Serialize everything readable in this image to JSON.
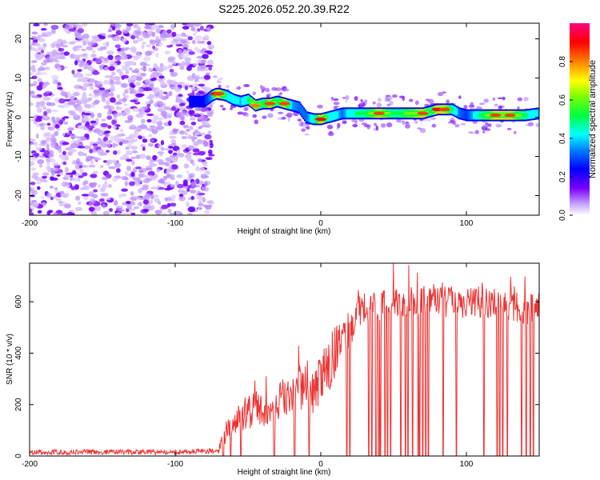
{
  "chart_data": [
    {
      "type": "heatmap",
      "title": "S225.2026.052.20.39.R22",
      "xlabel": "Height of straight line (km)",
      "ylabel": "Frequency (Hz)",
      "xlim": [
        -200,
        150
      ],
      "ylim": [
        -25,
        24
      ],
      "xticks": [
        -200,
        -100,
        0,
        100
      ],
      "yticks": [
        -20,
        -10,
        0,
        10,
        20
      ],
      "colorbar": {
        "label": "Normalized spectral amplitude",
        "range": [
          0,
          1
        ],
        "ticks": [
          "0.0",
          "0.2",
          "0.4",
          "0.6",
          "0.8"
        ],
        "tick_values": [
          0.0,
          0.2,
          0.4,
          0.6,
          0.8
        ]
      },
      "noise_region_x": [
        -200,
        -75
      ],
      "ridge": {
        "x": [
          -90,
          -85,
          -80,
          -75,
          -72,
          -70,
          -65,
          -60,
          -55,
          -50,
          -45,
          -40,
          -35,
          -30,
          -25,
          -20,
          -15,
          -10,
          -5,
          0,
          5,
          10,
          15,
          20,
          30,
          40,
          50,
          60,
          70,
          75,
          80,
          85,
          90,
          95,
          100,
          110,
          120,
          130,
          140,
          150
        ],
        "freq": [
          4.0,
          4.0,
          4.0,
          5.5,
          6.0,
          6.0,
          5.5,
          4.5,
          4.0,
          4.5,
          3.0,
          3.5,
          3.5,
          4.0,
          3.5,
          3.0,
          2.5,
          0.0,
          -0.5,
          -0.5,
          0.0,
          0.5,
          1.0,
          1.0,
          1.0,
          1.0,
          1.0,
          1.0,
          1.0,
          1.5,
          2.0,
          2.0,
          2.0,
          1.0,
          0.5,
          0.5,
          0.5,
          0.5,
          0.5,
          1.0
        ],
        "amplitude": [
          0.25,
          0.3,
          0.3,
          0.45,
          0.9,
          0.85,
          0.55,
          0.5,
          0.45,
          0.6,
          0.8,
          0.6,
          0.85,
          0.6,
          0.85,
          0.45,
          0.4,
          0.4,
          0.55,
          0.9,
          0.55,
          0.5,
          0.4,
          0.55,
          0.6,
          0.85,
          0.6,
          0.7,
          0.85,
          0.6,
          0.9,
          0.85,
          0.6,
          0.4,
          0.35,
          0.6,
          0.85,
          0.85,
          0.6,
          0.45
        ]
      }
    },
    {
      "type": "line",
      "xlabel": "Height of straight line (km)",
      "ylabel": "SNR (10 * v/v)",
      "xlim": [
        -200,
        150
      ],
      "ylim": [
        0,
        750
      ],
      "xticks": [
        -200,
        -100,
        0,
        100
      ],
      "yticks": [
        0,
        200,
        400,
        600
      ],
      "series": [
        {
          "name": "SNR",
          "color": "#ee3333",
          "envelope": {
            "x": [
              -200,
              -150,
              -100,
              -75,
              -70,
              -65,
              -60,
              -55,
              -50,
              -45,
              -40,
              -35,
              -30,
              -25,
              -20,
              -15,
              -10,
              -5,
              0,
              5,
              10,
              15,
              20,
              25,
              30,
              40,
              50,
              60,
              70,
              80,
              90,
              100,
              110,
              120,
              130,
              140,
              150
            ],
            "y": [
              15,
              15,
              15,
              20,
              25,
              100,
              130,
              150,
              170,
              190,
              170,
              180,
              200,
              230,
              250,
              270,
              270,
              250,
              300,
              350,
              400,
              450,
              500,
              550,
              580,
              580,
              600,
              600,
              610,
              610,
              590,
              600,
              600,
              590,
              590,
              570,
              580
            ],
            "noise": [
              10,
              10,
              10,
              10,
              15,
              45,
              55,
              65,
              70,
              70,
              60,
              60,
              70,
              80,
              85,
              90,
              90,
              90,
              100,
              110,
              110,
              90,
              80,
              70,
              60,
              60,
              60,
              60,
              60,
              60,
              60,
              60,
              60,
              60,
              60,
              60,
              60
            ]
          },
          "dropouts_x": [
            -67,
            -62,
            -55,
            -32,
            -18,
            -8,
            18,
            20,
            33,
            35,
            38,
            40,
            41,
            44,
            46,
            48,
            55,
            58,
            60,
            63,
            67,
            68,
            70,
            72,
            74,
            84,
            93,
            112,
            121,
            123,
            125,
            128,
            138,
            141,
            144,
            146
          ]
        }
      ]
    }
  ]
}
